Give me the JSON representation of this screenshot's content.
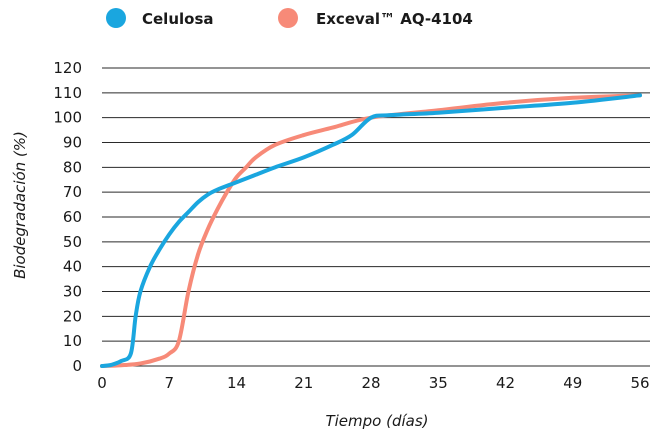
{
  "chart_data": {
    "type": "line",
    "title": "",
    "xlabel": "Tiempo (días)",
    "ylabel": "Biodegradación  (%)",
    "xlim": [
      0,
      56
    ],
    "ylim": [
      0,
      120
    ],
    "xticks": [
      0,
      7,
      14,
      21,
      28,
      35,
      42,
      49,
      56
    ],
    "yticks": [
      0,
      10,
      20,
      30,
      40,
      50,
      60,
      70,
      80,
      90,
      100,
      110,
      120
    ],
    "grid": "horizontal",
    "legend": "top",
    "series": [
      {
        "name": "Celulosa",
        "color": "#1aa6df",
        "x": [
          0,
          1,
          2,
          3,
          3.5,
          4,
          5,
          6,
          7,
          8,
          9,
          10,
          11,
          12,
          14,
          16,
          18,
          21,
          24,
          26,
          28,
          30,
          35,
          42,
          49,
          56
        ],
        "y": [
          0,
          0.5,
          2,
          5,
          20,
          30,
          40,
          47,
          53,
          58,
          62,
          66,
          69,
          71,
          74,
          77,
          80,
          84,
          89,
          93,
          100,
          101,
          102,
          104,
          106,
          109
        ]
      },
      {
        "name": "Exceval™ AQ-4104",
        "color": "#f78a78",
        "x": [
          0,
          2,
          4,
          6,
          7,
          8,
          9,
          10,
          11,
          12,
          13,
          14,
          15,
          16,
          18,
          21,
          24,
          28,
          35,
          42,
          49,
          56
        ],
        "y": [
          0,
          0.3,
          1,
          3,
          5,
          10,
          30,
          45,
          55,
          63,
          70,
          76,
          80,
          84,
          89,
          93,
          96,
          100,
          103,
          106,
          108,
          109
        ]
      }
    ]
  }
}
